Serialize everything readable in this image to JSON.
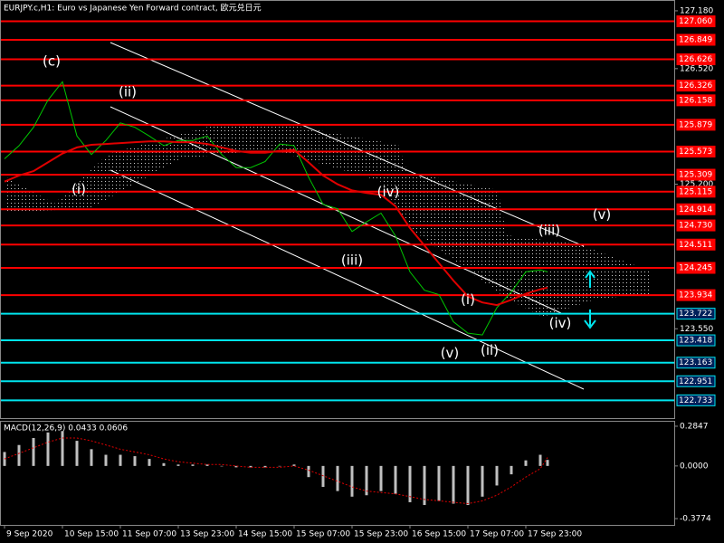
{
  "chart_data": [
    {
      "type": "line",
      "title": "EURJPY.c,H1:  Euro vs Japanese Yen Forward contract, 欧元兑日元",
      "x": [
        0,
        4,
        8,
        12,
        16,
        20,
        24,
        28,
        32,
        36,
        40,
        44,
        48,
        52,
        56,
        60,
        64,
        68,
        72,
        76,
        80,
        84,
        88,
        92,
        96,
        100,
        104,
        108,
        112,
        116,
        120,
        124,
        128,
        132,
        136,
        140,
        144,
        148,
        150
      ],
      "series": [
        {
          "color": "#00c800",
          "values": [
            125.49,
            125.64,
            125.85,
            126.16,
            126.37,
            125.75,
            125.54,
            125.7,
            125.9,
            125.85,
            125.75,
            125.64,
            125.7,
            125.7,
            125.75,
            125.54,
            125.39,
            125.39,
            125.46,
            125.66,
            125.64,
            125.28,
            124.97,
            124.92,
            124.66,
            124.77,
            124.87,
            124.61,
            124.2,
            123.99,
            123.94,
            123.63,
            123.5,
            123.48,
            123.79,
            123.97,
            124.2,
            124.22,
            124.2
          ]
        },
        {
          "color": "#e00000",
          "values": [
            125.23,
            125.3,
            125.35,
            125.45,
            125.55,
            125.62,
            125.65,
            125.66,
            125.67,
            125.68,
            125.69,
            125.69,
            125.68,
            125.68,
            125.66,
            125.62,
            125.58,
            125.56,
            125.56,
            125.58,
            125.59,
            125.45,
            125.3,
            125.2,
            125.13,
            125.1,
            125.08,
            124.95,
            124.7,
            124.5,
            124.3,
            124.1,
            123.92,
            123.85,
            123.82,
            123.88,
            123.95,
            124.0,
            124.02
          ]
        }
      ],
      "xlim": [
        -1,
        185
      ],
      "xticks": [
        {
          "value": 0,
          "label": "9 Sep 2020"
        },
        {
          "value": 16,
          "label": "10 Sep 15:00"
        },
        {
          "value": 32,
          "label": "11 Sep 07:00"
        },
        {
          "value": 48,
          "label": "13 Sep 23:00"
        },
        {
          "value": 64,
          "label": "14 Sep 15:00"
        },
        {
          "value": 80,
          "label": "15 Sep 07:00"
        },
        {
          "value": 96,
          "label": "15 Sep 23:00"
        },
        {
          "value": 112,
          "label": "16 Sep 15:00"
        },
        {
          "value": 128,
          "label": "17 Sep 07:00"
        },
        {
          "value": 144,
          "label": "17 Sep 23:00"
        }
      ],
      "ylim": [
        122.53,
        127.293
      ],
      "yticks": [
        {
          "value": 127.18,
          "label": "127.180"
        },
        {
          "value": 126.52,
          "label": "126.520"
        },
        {
          "value": 125.2,
          "label": "125.200"
        },
        {
          "value": 123.55,
          "label": "123.550"
        }
      ],
      "grid": false,
      "levels": [
        {
          "value": 127.06,
          "label": "127.060",
          "color": "#ff0000"
        },
        {
          "value": 126.849,
          "label": "126.849",
          "color": "#ff0000"
        },
        {
          "value": 126.626,
          "label": "126.626",
          "color": "#ff0000"
        },
        {
          "value": 126.326,
          "label": "126.326",
          "color": "#ff0000"
        },
        {
          "value": 126.158,
          "label": "126.158",
          "color": "#ff0000"
        },
        {
          "value": 125.879,
          "label": "125.879",
          "color": "#ff0000"
        },
        {
          "value": 125.573,
          "label": "125.573",
          "color": "#ff0000"
        },
        {
          "value": 125.309,
          "label": "125.309",
          "color": "#ff0000"
        },
        {
          "value": 125.115,
          "label": "125.115",
          "color": "#ff0000"
        },
        {
          "value": 124.914,
          "label": "124.914",
          "color": "#ff0000"
        },
        {
          "value": 124.73,
          "label": "124.730",
          "color": "#ff0000"
        },
        {
          "value": 124.511,
          "label": "124.511",
          "color": "#ff0000"
        },
        {
          "value": 124.245,
          "label": "124.245",
          "color": "#ff0000"
        },
        {
          "value": 123.934,
          "label": "123.934",
          "color": "#ff0000"
        },
        {
          "value": 123.722,
          "label": "123.722",
          "color": "#00e5ee"
        },
        {
          "value": 123.418,
          "label": "123.418",
          "color": "#00e5ee"
        },
        {
          "value": 123.163,
          "label": "123.163",
          "color": "#00e5ee"
        },
        {
          "value": 122.951,
          "label": "122.951",
          "color": "#00e5ee"
        },
        {
          "value": 122.733,
          "label": "122.733",
          "color": "#00e5ee"
        }
      ],
      "annotations": [
        {
          "text": "(c)",
          "x": 13,
          "y": 126.6,
          "color": "#e6b800"
        },
        {
          "text": "(ii)",
          "x": 34,
          "y": 126.25,
          "color": "#ffffff"
        },
        {
          "text": "(i)",
          "x": 20.5,
          "y": 125.14,
          "color": "#ffffff"
        },
        {
          "text": "(iv)",
          "x": 106,
          "y": 125.11,
          "color": "#ffffff"
        },
        {
          "text": "(iii)",
          "x": 96,
          "y": 124.33,
          "color": "#ffffff"
        },
        {
          "text": "(i)",
          "x": 128,
          "y": 123.88,
          "color": "#ffffff"
        },
        {
          "text": "(v)",
          "x": 123,
          "y": 123.27,
          "color": "#ffffff"
        },
        {
          "text": "(ii)",
          "x": 134,
          "y": 123.3,
          "color": "#ffffff"
        },
        {
          "text": "(iii)",
          "x": 150.5,
          "y": 124.67,
          "color": "#ffffff"
        },
        {
          "text": "(iv)",
          "x": 153.5,
          "y": 123.61,
          "color": "#ffffff"
        },
        {
          "text": "(v)",
          "x": 165,
          "y": 124.85,
          "color": "#ffffff"
        }
      ]
    },
    {
      "type": "bar",
      "title": "MACD(12,26,9) 0.0433 0.0606",
      "x": [
        0,
        4,
        8,
        12,
        16,
        20,
        24,
        28,
        32,
        36,
        40,
        44,
        48,
        52,
        56,
        60,
        64,
        68,
        72,
        76,
        80,
        84,
        88,
        92,
        96,
        100,
        104,
        108,
        112,
        116,
        120,
        124,
        128,
        132,
        136,
        140,
        144,
        148,
        150
      ],
      "series": [
        {
          "type": "bar",
          "color": "#c0c0c0",
          "values": [
            0.1,
            0.15,
            0.2,
            0.24,
            0.25,
            0.18,
            0.12,
            0.08,
            0.08,
            0.07,
            0.05,
            0.02,
            0.01,
            0.01,
            0.01,
            0.0,
            -0.01,
            -0.01,
            -0.01,
            0.0,
            0.01,
            -0.08,
            -0.15,
            -0.18,
            -0.22,
            -0.21,
            -0.18,
            -0.2,
            -0.26,
            -0.28,
            -0.25,
            -0.27,
            -0.28,
            -0.22,
            -0.14,
            -0.06,
            0.04,
            0.08,
            0.0433
          ]
        },
        {
          "type": "line",
          "color": "#e00000",
          "values": [
            0.05,
            0.09,
            0.13,
            0.17,
            0.2,
            0.2,
            0.18,
            0.15,
            0.12,
            0.1,
            0.08,
            0.05,
            0.03,
            0.02,
            0.01,
            0.01,
            0.0,
            -0.01,
            -0.01,
            -0.01,
            0.0,
            -0.03,
            -0.07,
            -0.11,
            -0.15,
            -0.18,
            -0.19,
            -0.2,
            -0.22,
            -0.24,
            -0.25,
            -0.26,
            -0.27,
            -0.25,
            -0.21,
            -0.15,
            -0.08,
            -0.02,
            0.0606
          ]
        }
      ],
      "xlim": [
        -1,
        185
      ],
      "ylim": [
        -0.4224,
        0.3168
      ],
      "yticks": [
        0.2847,
        {
          "value": 0,
          "label": "0.0000"
        },
        -0.3774
      ]
    }
  ]
}
